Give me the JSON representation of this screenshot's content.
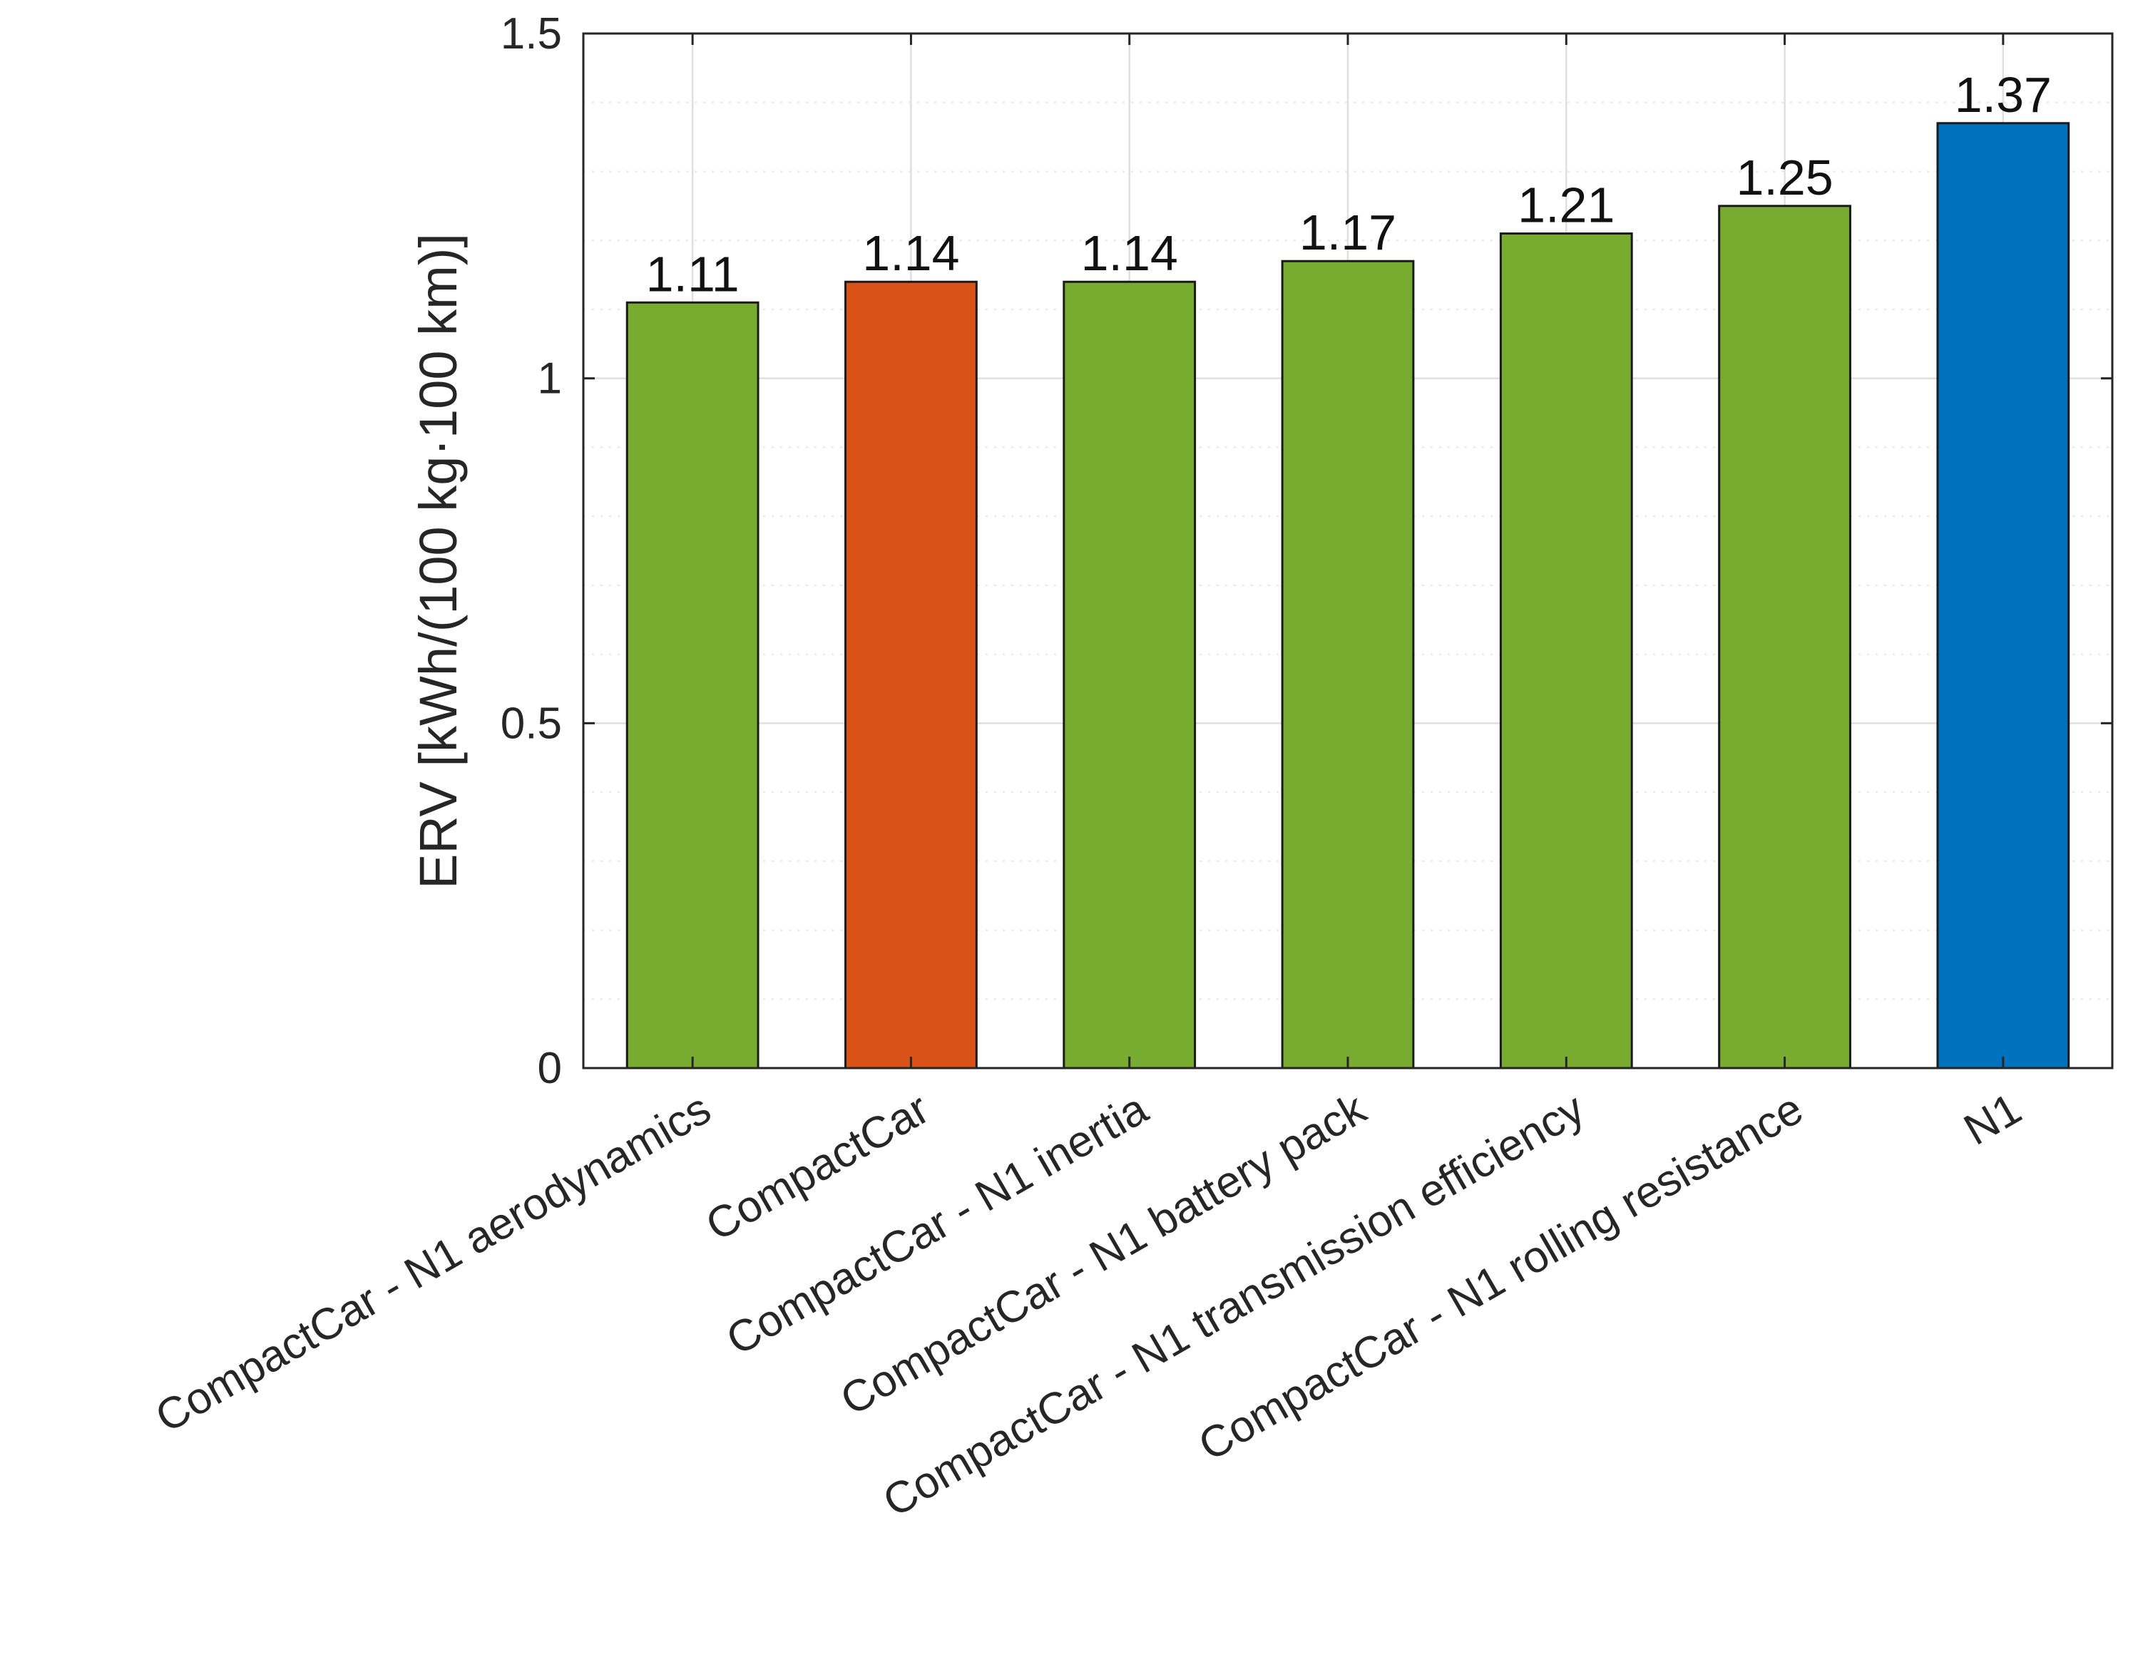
{
  "chart_data": {
    "type": "bar",
    "title": "",
    "xlabel": "",
    "ylabel": "ERV [kWh/(100 kg·100 km)]",
    "ylim": [
      0,
      1.5
    ],
    "yticks": [
      0,
      0.5,
      1,
      1.5
    ],
    "ytick_labels": [
      "0",
      "0.5",
      "1",
      "1.5"
    ],
    "grid": true,
    "categories": [
      "CompactCar - N1 aerodynamics",
      "CompactCar",
      "CompactCar - N1 inertia",
      "CompactCar - N1 battery pack",
      "CompactCar - N1 transmission efficiency",
      "CompactCar - N1 rolling resistance",
      "N1"
    ],
    "values": [
      1.11,
      1.14,
      1.14,
      1.17,
      1.21,
      1.25,
      1.37
    ],
    "value_labels": [
      "1.11",
      "1.14",
      "1.14",
      "1.17",
      "1.21",
      "1.25",
      "1.37"
    ],
    "bar_colors": [
      "#77ac30",
      "#d95319",
      "#77ac30",
      "#77ac30",
      "#77ac30",
      "#77ac30",
      "#0072bd"
    ]
  }
}
